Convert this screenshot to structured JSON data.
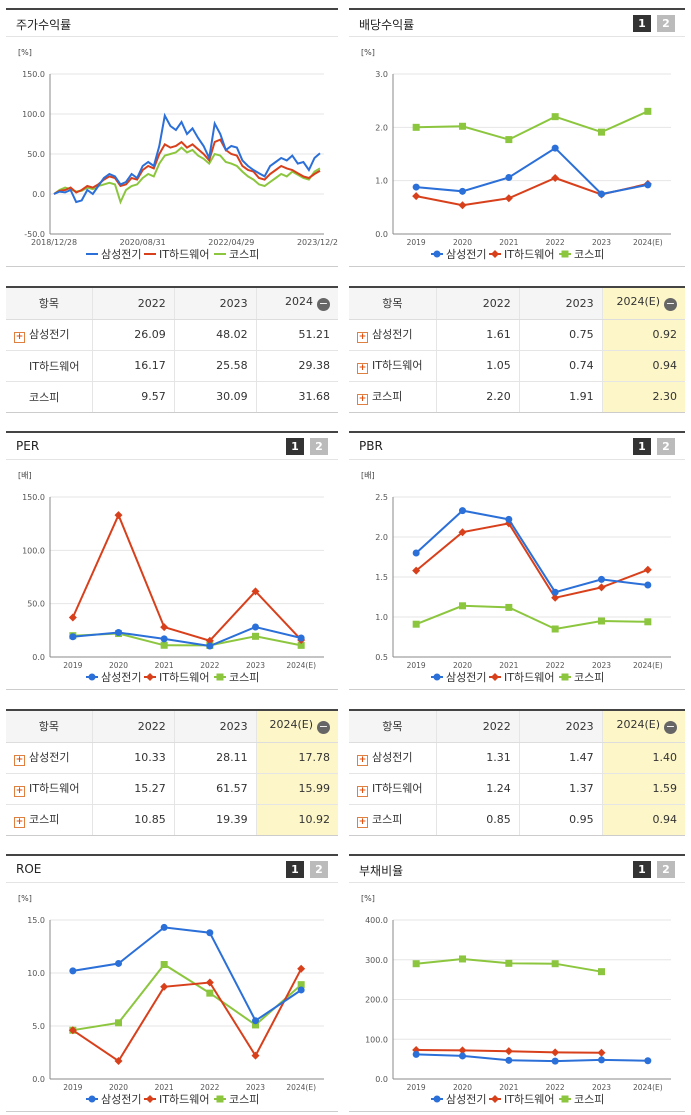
{
  "panels": [
    {
      "title": "주가수익률",
      "buttons": [],
      "unit": "[%]"
    },
    {
      "title": "배당수익률",
      "buttons": [
        "1",
        "2"
      ],
      "unit": "[%]"
    },
    {
      "title": "PER",
      "buttons": [
        "1",
        "2"
      ],
      "unit": "[배]"
    },
    {
      "title": "PBR",
      "buttons": [
        "1",
        "2"
      ],
      "unit": "[배]"
    },
    {
      "title": "ROE",
      "buttons": [
        "1",
        "2"
      ],
      "unit": "[%]"
    },
    {
      "title": "부채비율",
      "buttons": [
        "1",
        "2"
      ],
      "unit": "[%]"
    }
  ],
  "colors": {
    "samsung": "#2b6fd8",
    "ithw": "#d8401c",
    "kospi": "#8cc63e",
    "axis": "#888888",
    "grid": "#e6e6e6"
  },
  "legend": [
    "삼성전기",
    "IT하드웨어",
    "코스피"
  ],
  "tables": [
    {
      "header": [
        "항목",
        "2022",
        "2023",
        "2024"
      ],
      "header_icon": "minus-icon",
      "rows": [
        {
          "label": "삼성전기",
          "plus": true,
          "values": [
            "26.09",
            "48.02",
            "51.21"
          ]
        },
        {
          "label": "IT하드웨어",
          "plus": false,
          "values": [
            "16.17",
            "25.58",
            "29.38"
          ]
        },
        {
          "label": "코스피",
          "plus": false,
          "values": [
            "9.57",
            "30.09",
            "31.68"
          ]
        }
      ]
    },
    {
      "header": [
        "항목",
        "2022",
        "2023",
        "2024(E)"
      ],
      "header_icon": "minus-icon",
      "rows": [
        {
          "label": "삼성전기",
          "plus": true,
          "values": [
            "1.61",
            "0.75",
            "0.92"
          ]
        },
        {
          "label": "IT하드웨어",
          "plus": true,
          "values": [
            "1.05",
            "0.74",
            "0.94"
          ]
        },
        {
          "label": "코스피",
          "plus": true,
          "values": [
            "2.20",
            "1.91",
            "2.30"
          ]
        }
      ]
    },
    {
      "header": [
        "항목",
        "2022",
        "2023",
        "2024(E)"
      ],
      "header_icon": "minus-icon",
      "rows": [
        {
          "label": "삼성전기",
          "plus": true,
          "values": [
            "10.33",
            "28.11",
            "17.78"
          ]
        },
        {
          "label": "IT하드웨어",
          "plus": true,
          "values": [
            "15.27",
            "61.57",
            "15.99"
          ]
        },
        {
          "label": "코스피",
          "plus": true,
          "values": [
            "10.85",
            "19.39",
            "10.92"
          ]
        }
      ]
    },
    {
      "header": [
        "항목",
        "2022",
        "2023",
        "2024(E)"
      ],
      "header_icon": "minus-icon",
      "rows": [
        {
          "label": "삼성전기",
          "plus": true,
          "values": [
            "1.31",
            "1.47",
            "1.40"
          ]
        },
        {
          "label": "IT하드웨어",
          "plus": true,
          "values": [
            "1.24",
            "1.37",
            "1.59"
          ]
        },
        {
          "label": "코스피",
          "plus": true,
          "values": [
            "0.85",
            "0.95",
            "0.94"
          ]
        }
      ]
    }
  ],
  "chart_data": [
    {
      "type": "line",
      "title": "주가수익률",
      "ylabel": "[%]",
      "ylim": [
        -50,
        150
      ],
      "yticks": [
        "150.0",
        "100.0",
        "50.0",
        "0.0",
        "-50.0"
      ],
      "xticks": [
        "2018/12/28",
        "2020/08/31",
        "2022/04/29",
        "2023/12/28"
      ],
      "series": [
        {
          "name": "삼성전기",
          "values": [
            0,
            3,
            2,
            5,
            -10,
            -8,
            5,
            0,
            10,
            20,
            25,
            22,
            12,
            15,
            25,
            20,
            35,
            40,
            35,
            60,
            98,
            85,
            80,
            90,
            75,
            82,
            70,
            60,
            45,
            88,
            75,
            55,
            60,
            58,
            42,
            35,
            30,
            26,
            22,
            35,
            40,
            45,
            42,
            48,
            38,
            40,
            30,
            45,
            51
          ]
        },
        {
          "name": "IT하드웨어",
          "values": [
            0,
            4,
            5,
            8,
            2,
            5,
            10,
            8,
            12,
            18,
            22,
            20,
            10,
            12,
            20,
            18,
            30,
            35,
            32,
            50,
            62,
            58,
            60,
            65,
            58,
            62,
            56,
            50,
            42,
            65,
            68,
            55,
            50,
            48,
            35,
            30,
            28,
            20,
            18,
            25,
            30,
            35,
            32,
            30,
            26,
            22,
            20,
            25,
            29
          ]
        },
        {
          "name": "코스피",
          "values": [
            0,
            5,
            8,
            6,
            3,
            4,
            8,
            6,
            10,
            12,
            14,
            12,
            -10,
            5,
            10,
            12,
            20,
            25,
            22,
            38,
            48,
            50,
            52,
            58,
            52,
            55,
            48,
            44,
            38,
            50,
            48,
            40,
            38,
            35,
            28,
            22,
            18,
            12,
            10,
            15,
            20,
            25,
            22,
            28,
            24,
            20,
            18,
            28,
            32
          ]
        }
      ]
    },
    {
      "type": "line",
      "title": "배당수익률",
      "ylabel": "[%]",
      "ylim": [
        0,
        3
      ],
      "yticks": [
        "3.0",
        "2.0",
        "1.0",
        "0.0"
      ],
      "categories": [
        "2019",
        "2020",
        "2021",
        "2022",
        "2023",
        "2024(E)"
      ],
      "series": [
        {
          "name": "삼성전기",
          "values": [
            0.88,
            0.8,
            1.06,
            1.61,
            0.75,
            0.92
          ]
        },
        {
          "name": "IT하드웨어",
          "values": [
            0.71,
            0.54,
            0.67,
            1.05,
            0.74,
            0.94
          ]
        },
        {
          "name": "코스피",
          "values": [
            2.0,
            2.02,
            1.77,
            2.2,
            1.91,
            2.3
          ]
        }
      ]
    },
    {
      "type": "line",
      "title": "PER",
      "ylabel": "[배]",
      "ylim": [
        0,
        150
      ],
      "yticks": [
        "150.0",
        "100.0",
        "50.0",
        "0.0"
      ],
      "categories": [
        "2019",
        "2020",
        "2021",
        "2022",
        "2023",
        "2024(E)"
      ],
      "series": [
        {
          "name": "삼성전기",
          "values": [
            19,
            23,
            17,
            10.33,
            28.11,
            17.78
          ]
        },
        {
          "name": "IT하드웨어",
          "values": [
            37,
            133,
            28,
            15.27,
            61.57,
            15.99
          ]
        },
        {
          "name": "코스피",
          "values": [
            20,
            22,
            11,
            10.85,
            19.39,
            10.92
          ]
        }
      ]
    },
    {
      "type": "line",
      "title": "PBR",
      "ylabel": "[배]",
      "ylim": [
        0.5,
        2.5
      ],
      "yticks": [
        "2.5",
        "2.0",
        "1.5",
        "1.0",
        "0.5"
      ],
      "categories": [
        "2019",
        "2020",
        "2021",
        "2022",
        "2023",
        "2024(E)"
      ],
      "series": [
        {
          "name": "삼성전기",
          "values": [
            1.8,
            2.33,
            2.22,
            1.31,
            1.47,
            1.4
          ]
        },
        {
          "name": "IT하드웨어",
          "values": [
            1.58,
            2.06,
            2.17,
            1.24,
            1.37,
            1.59
          ]
        },
        {
          "name": "코스피",
          "values": [
            0.91,
            1.14,
            1.12,
            0.85,
            0.95,
            0.94
          ]
        }
      ]
    },
    {
      "type": "line",
      "title": "ROE",
      "ylabel": "[%]",
      "ylim": [
        0,
        15
      ],
      "yticks": [
        "15.0",
        "10.0",
        "5.0",
        "0.0"
      ],
      "categories": [
        "2019",
        "2020",
        "2021",
        "2022",
        "2023",
        "2024(E)"
      ],
      "series": [
        {
          "name": "삼성전기",
          "values": [
            10.2,
            10.9,
            14.3,
            13.8,
            5.5,
            8.4
          ]
        },
        {
          "name": "IT하드웨어",
          "values": [
            4.6,
            1.7,
            8.7,
            9.1,
            2.2,
            10.4
          ]
        },
        {
          "name": "코스피",
          "values": [
            4.6,
            5.3,
            10.8,
            8.1,
            5.1,
            8.9
          ]
        }
      ]
    },
    {
      "type": "line",
      "title": "부채비율",
      "ylabel": "[%]",
      "ylim": [
        0,
        400
      ],
      "yticks": [
        "400.0",
        "300.0",
        "200.0",
        "100.0",
        "0.0"
      ],
      "categories": [
        "2019",
        "2020",
        "2021",
        "2022",
        "2023",
        "2024(E)"
      ],
      "series": [
        {
          "name": "삼성전기",
          "values": [
            62,
            58,
            47,
            45,
            48,
            46
          ]
        },
        {
          "name": "IT하드웨어",
          "values": [
            73,
            72,
            70,
            67,
            66,
            null
          ]
        },
        {
          "name": "코스피",
          "values": [
            290,
            302,
            291,
            290,
            270,
            null
          ]
        }
      ]
    }
  ]
}
